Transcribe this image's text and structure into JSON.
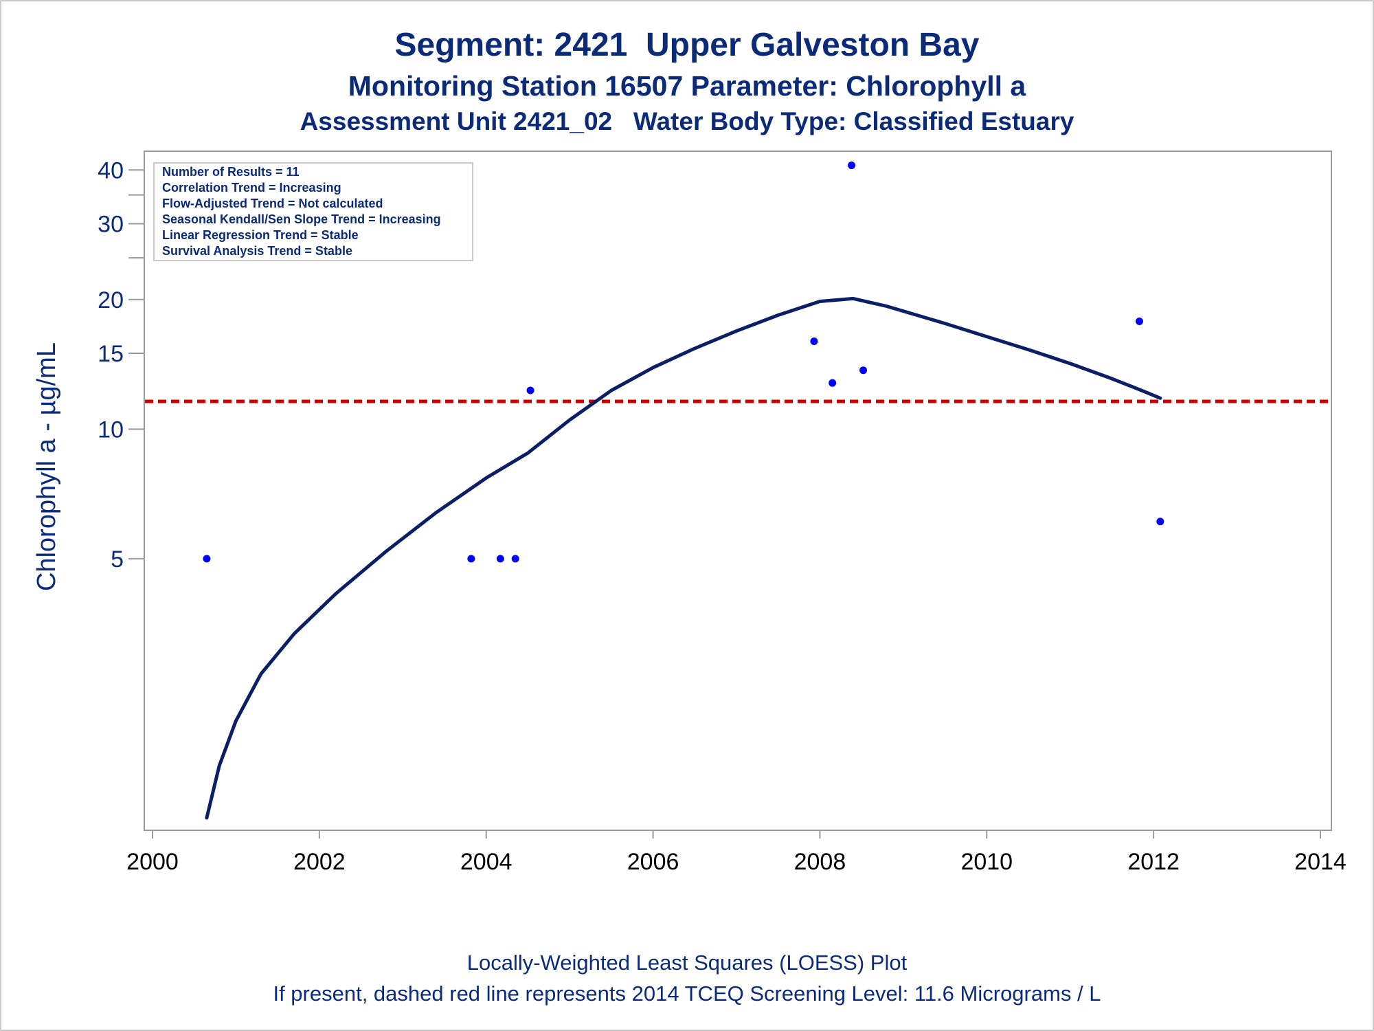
{
  "titles": {
    "line1": "Segment: 2421  Upper Galveston Bay",
    "line2": "Monitoring Station 16507 Parameter: Chlorophyll a",
    "line3": "Assessment Unit 2421_02   Water Body Type: Classified Estuary"
  },
  "legend": {
    "lines": [
      "Number of Results = 11",
      "Correlation Trend = Increasing",
      "Flow-Adjusted Trend = Not calculated",
      "Seasonal Kendall/Sen Slope Trend = Increasing",
      "Linear Regression Trend = Stable",
      "Survival Analysis Trend = Stable"
    ]
  },
  "footnotes": {
    "line1": "Locally-Weighted Least Squares (LOESS) Plot",
    "line2": "If present, dashed red line represents 2014 TCEQ Screening Level: 11.6 Micrograms / L"
  },
  "colors": {
    "text": "#0b2a78",
    "points": "#0000ff",
    "loess": "#0b1f66",
    "screening": "#cc0000",
    "axis": "#9a9a9a"
  },
  "chart_data": {
    "type": "scatter",
    "title": "Segment: 2421  Upper Galveston Bay",
    "xlabel": "",
    "ylabel": "Chlorophyll a -  µg/mL",
    "yscale": "log",
    "xlim": [
      2000,
      2014
    ],
    "xticks": [
      2000,
      2002,
      2004,
      2006,
      2008,
      2010,
      2012,
      2014
    ],
    "ylim": [
      1.2,
      42
    ],
    "yticks": [
      5,
      10,
      15,
      20,
      30,
      40
    ],
    "yticks_minor": [
      25,
      35
    ],
    "screening_level": 11.6,
    "points": [
      {
        "x": 2000.65,
        "y": 5
      },
      {
        "x": 2003.82,
        "y": 5
      },
      {
        "x": 2004.17,
        "y": 5
      },
      {
        "x": 2004.35,
        "y": 5
      },
      {
        "x": 2004.53,
        "y": 12.3
      },
      {
        "x": 2007.93,
        "y": 16.0
      },
      {
        "x": 2008.15,
        "y": 12.8
      },
      {
        "x": 2008.38,
        "y": 41.0
      },
      {
        "x": 2008.52,
        "y": 13.7
      },
      {
        "x": 2011.83,
        "y": 17.8
      },
      {
        "x": 2012.08,
        "y": 6.1
      }
    ],
    "loess": {
      "x": [
        2000.65,
        2000.8,
        2001.0,
        2001.3,
        2001.7,
        2002.2,
        2002.8,
        2003.4,
        2004.0,
        2004.5,
        2005.0,
        2005.5,
        2006.0,
        2006.5,
        2007.0,
        2007.5,
        2008.0,
        2008.4,
        2008.8,
        2009.5,
        2010.0,
        2010.5,
        2011.0,
        2011.5,
        2011.9,
        2012.08
      ],
      "y": [
        1.25,
        1.65,
        2.1,
        2.7,
        3.35,
        4.15,
        5.2,
        6.4,
        7.7,
        8.8,
        10.5,
        12.3,
        13.9,
        15.4,
        16.9,
        18.4,
        19.8,
        20.1,
        19.3,
        17.6,
        16.4,
        15.3,
        14.2,
        13.1,
        12.2,
        11.8
      ]
    }
  }
}
